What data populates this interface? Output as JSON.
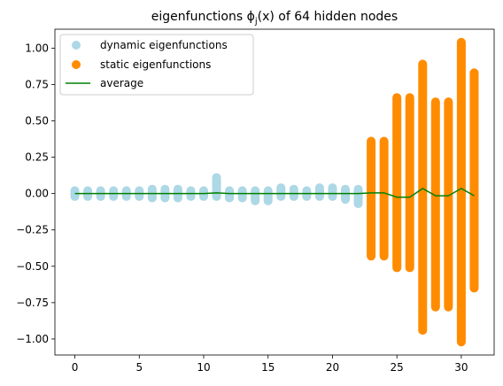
{
  "chart_data": {
    "type": "scatter",
    "title": "eigenfunctions ϕ",
    "title_sub": "j",
    "title_rest": "(x) of 64 hidden nodes",
    "xlim": [
      -1.55,
      32.55
    ],
    "ylim": [
      -1.11,
      1.13
    ],
    "x_ticks": [
      0,
      5,
      10,
      15,
      20,
      25,
      30
    ],
    "y_ticks": [
      -1.0,
      -0.75,
      -0.5,
      -0.25,
      0.0,
      0.25,
      0.5,
      0.75,
      1.0
    ],
    "x_tick_labels": [
      "0",
      "5",
      "10",
      "15",
      "20",
      "25",
      "30"
    ],
    "y_tick_labels": [
      "−1.00",
      "−0.75",
      "−0.50",
      "−0.25",
      "0.00",
      "0.25",
      "0.50",
      "0.75",
      "1.00"
    ],
    "legend_position": "upper-left",
    "series": [
      {
        "name": "dynamic eigenfunctions",
        "color": "#add8e6",
        "kind": "scatter",
        "columns": [
          {
            "x": 0,
            "min": -0.02,
            "max": 0.02
          },
          {
            "x": 1,
            "min": -0.02,
            "max": 0.02
          },
          {
            "x": 2,
            "min": -0.02,
            "max": 0.02
          },
          {
            "x": 3,
            "min": -0.02,
            "max": 0.02
          },
          {
            "x": 4,
            "min": -0.02,
            "max": 0.02
          },
          {
            "x": 5,
            "min": -0.02,
            "max": 0.02
          },
          {
            "x": 6,
            "min": -0.03,
            "max": 0.03
          },
          {
            "x": 7,
            "min": -0.03,
            "max": 0.03
          },
          {
            "x": 8,
            "min": -0.03,
            "max": 0.03
          },
          {
            "x": 9,
            "min": -0.02,
            "max": 0.02
          },
          {
            "x": 10,
            "min": -0.02,
            "max": 0.02
          },
          {
            "x": 11,
            "min": -0.02,
            "max": 0.11
          },
          {
            "x": 12,
            "min": -0.03,
            "max": 0.02
          },
          {
            "x": 13,
            "min": -0.03,
            "max": 0.02
          },
          {
            "x": 14,
            "min": -0.05,
            "max": 0.02
          },
          {
            "x": 15,
            "min": -0.05,
            "max": 0.02
          },
          {
            "x": 16,
            "min": -0.02,
            "max": 0.04
          },
          {
            "x": 17,
            "min": -0.02,
            "max": 0.03
          },
          {
            "x": 18,
            "min": -0.02,
            "max": 0.02
          },
          {
            "x": 19,
            "min": -0.02,
            "max": 0.04
          },
          {
            "x": 20,
            "min": -0.02,
            "max": 0.04
          },
          {
            "x": 21,
            "min": -0.04,
            "max": 0.03
          },
          {
            "x": 22,
            "min": -0.07,
            "max": 0.03
          }
        ]
      },
      {
        "name": "static eigenfunctions",
        "color": "#ff8c00",
        "kind": "scatter",
        "columns": [
          {
            "x": 23,
            "min": -0.43,
            "max": 0.36
          },
          {
            "x": 24,
            "min": -0.43,
            "max": 0.36
          },
          {
            "x": 25,
            "min": -0.51,
            "max": 0.66
          },
          {
            "x": 26,
            "min": -0.51,
            "max": 0.66
          },
          {
            "x": 27,
            "min": -0.94,
            "max": 0.89
          },
          {
            "x": 28,
            "min": -0.78,
            "max": 0.63
          },
          {
            "x": 29,
            "min": -0.78,
            "max": 0.63
          },
          {
            "x": 30,
            "min": -1.02,
            "max": 1.04
          },
          {
            "x": 31,
            "min": -0.65,
            "max": 0.83
          }
        ]
      },
      {
        "name": "average",
        "color": "#008000",
        "kind": "line",
        "x": [
          0,
          1,
          2,
          3,
          4,
          5,
          6,
          7,
          8,
          9,
          10,
          11,
          12,
          13,
          14,
          15,
          16,
          17,
          18,
          19,
          20,
          21,
          22,
          23,
          24,
          25,
          26,
          27,
          28,
          29,
          30,
          31
        ],
        "y": [
          0.0,
          0.0,
          0.0,
          0.0,
          0.0,
          0.0,
          0.0,
          0.0,
          0.0,
          0.0,
          0.0,
          0.005,
          0.0,
          0.0,
          0.0,
          0.0,
          0.0,
          0.0,
          0.0,
          0.0,
          0.0,
          0.0,
          0.0,
          0.005,
          0.005,
          -0.025,
          -0.025,
          0.035,
          -0.015,
          -0.015,
          0.035,
          -0.015
        ]
      }
    ]
  }
}
